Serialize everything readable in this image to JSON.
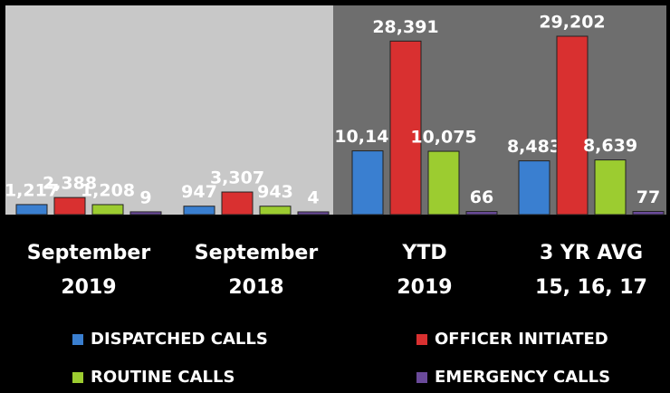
{
  "chart_data": {
    "type": "bar",
    "categories": [
      [
        "September",
        "2019"
      ],
      [
        "September",
        "2018"
      ],
      [
        "YTD",
        "2019"
      ],
      [
        "3 YR AVG",
        "15, 16, 17"
      ]
    ],
    "series": [
      {
        "name": "DISPATCHED CALLS",
        "color": "#3a7fd0",
        "values": [
          1217,
          947,
          10143,
          8483
        ],
        "value_labels": [
          "1,217",
          "947",
          "10,143",
          "8,483"
        ]
      },
      {
        "name": "OFFICER INITIATED",
        "color": "#d93030",
        "values": [
          2388,
          3307,
          28391,
          29202
        ],
        "value_labels": [
          "2,388",
          "3,307",
          "28,391",
          "29,202"
        ]
      },
      {
        "name": "ROUTINE CALLS",
        "color": "#9ccc30",
        "values": [
          1208,
          943,
          10075,
          8639
        ],
        "value_labels": [
          "1,208",
          "943",
          "10,075",
          "8,639"
        ]
      },
      {
        "name": "EMERGENCY CALLS",
        "color": "#6a4a9a",
        "values": [
          9,
          4,
          66,
          77
        ],
        "value_labels": [
          "9",
          "4",
          "66",
          "77"
        ]
      }
    ]
  }
}
